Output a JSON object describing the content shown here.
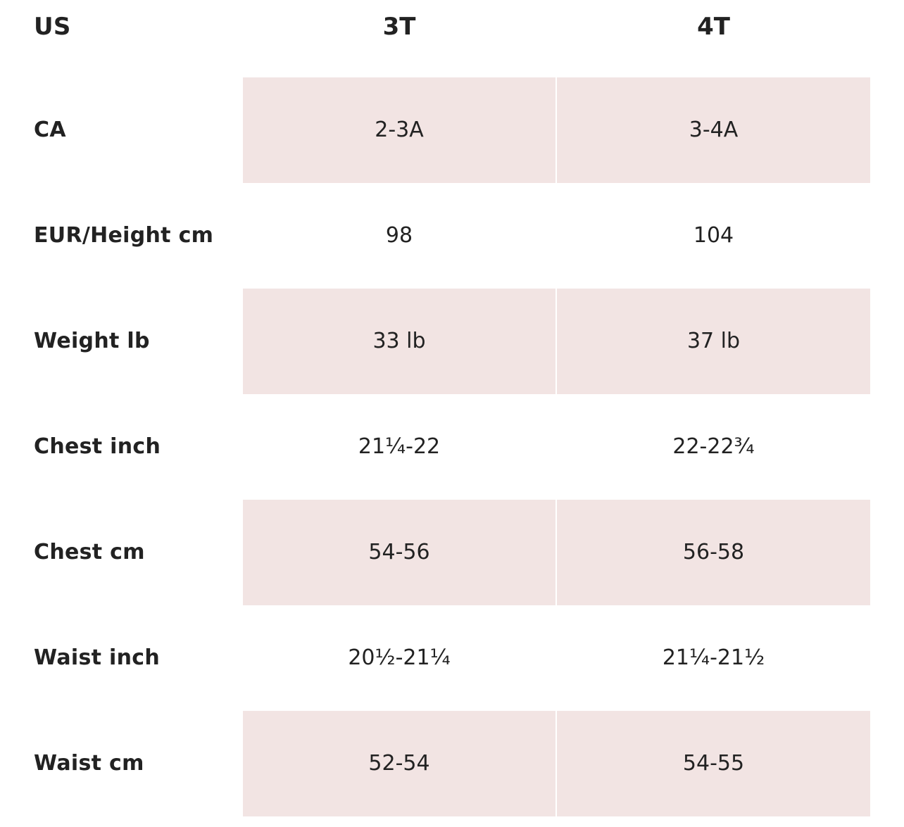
{
  "header": {
    "label": "US",
    "sizes": [
      "3T",
      "4T"
    ]
  },
  "rows": [
    {
      "label": "CA",
      "values": [
        "2-3A",
        "3-4A"
      ]
    },
    {
      "label": "EUR/Height cm",
      "values": [
        "98",
        "104"
      ]
    },
    {
      "label": "Weight lb",
      "values": [
        "33 lb",
        "37 lb"
      ]
    },
    {
      "label": "Chest inch",
      "values": [
        "21¼-22",
        "22-22¾"
      ]
    },
    {
      "label": "Chest cm",
      "values": [
        "54-56",
        "56-58"
      ]
    },
    {
      "label": "Waist inch",
      "values": [
        "20½-21¼",
        "21¼-21½"
      ]
    },
    {
      "label": "Waist cm",
      "values": [
        "52-54",
        "54-55"
      ]
    }
  ],
  "colors": {
    "shaded_row": "#f2e4e3",
    "text": "#222222",
    "background": "#ffffff"
  }
}
